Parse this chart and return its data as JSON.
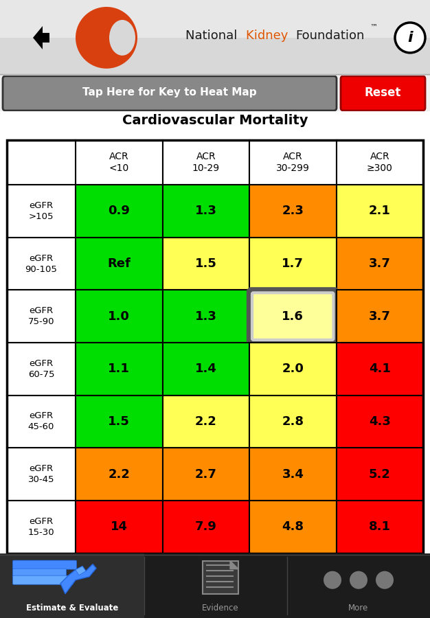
{
  "title": "Cardiovascular Mortality",
  "col_headers": [
    "ACR\n<10",
    "ACR\n10-29",
    "ACR\n30-299",
    "ACR\n≥300"
  ],
  "row_headers": [
    "eGFR\n>105",
    "eGFR\n90-105",
    "eGFR\n75-90",
    "eGFR\n60-75",
    "eGFR\n45-60",
    "eGFR\n30-45",
    "eGFR\n15-30"
  ],
  "values": [
    [
      "0.9",
      "1.3",
      "2.3",
      "2.1"
    ],
    [
      "Ref",
      "1.5",
      "1.7",
      "3.7"
    ],
    [
      "1.0",
      "1.3",
      "1.6",
      "3.7"
    ],
    [
      "1.1",
      "1.4",
      "2.0",
      "4.1"
    ],
    [
      "1.5",
      "2.2",
      "2.8",
      "4.3"
    ],
    [
      "2.2",
      "2.7",
      "3.4",
      "5.2"
    ],
    [
      "14",
      "7.9",
      "4.8",
      "8.1"
    ]
  ],
  "cell_colors": [
    [
      "#00dd00",
      "#00dd00",
      "#ff8c00",
      "#ffff55"
    ],
    [
      "#00dd00",
      "#ffff55",
      "#ffff55",
      "#ff8c00"
    ],
    [
      "#00dd00",
      "#00dd00",
      "#ffff99",
      "#ff8c00"
    ],
    [
      "#00dd00",
      "#00dd00",
      "#ffff55",
      "#ff0000"
    ],
    [
      "#00dd00",
      "#ffff55",
      "#ffff55",
      "#ff0000"
    ],
    [
      "#ff8c00",
      "#ff8c00",
      "#ff8c00",
      "#ff0000"
    ],
    [
      "#ff0000",
      "#ff0000",
      "#ff8c00",
      "#ff0000"
    ]
  ],
  "highlight_cell": [
    2,
    2
  ],
  "bg_color": "#ffffff",
  "header_bg": "#ffffff",
  "top_bar_gradient_top": "#e8e8e8",
  "top_bar_gradient_bot": "#c0c0c0",
  "bottom_bar_color": "#1c1c1c",
  "kidney_color": "#d94010",
  "nkf_kidney_color": "#e05500",
  "reset_button_color": "#ee0000",
  "tap_button_color": "#888888",
  "info_border_color": "#000000",
  "tab1_bg": "#2a2a2a",
  "tab_text_inactive": "#999999",
  "tab_text_active": "#ffffff"
}
